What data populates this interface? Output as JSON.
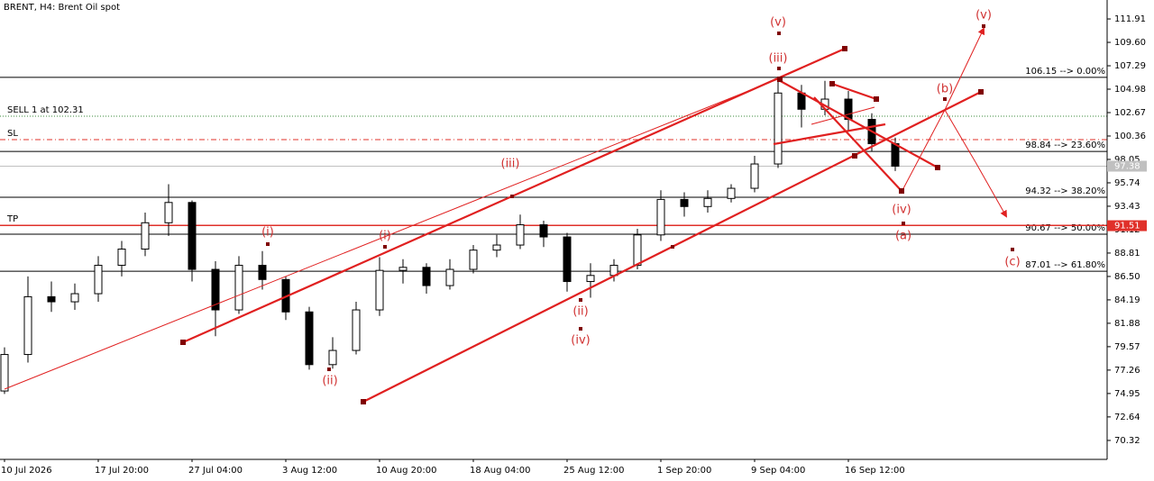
{
  "chart_data": {
    "type": "candlestick",
    "title": "BRENT, H4:  Brent Oil spot",
    "categories": [
      "10 Jul 2026",
      null,
      null,
      null,
      "17 Jul 20:00",
      null,
      null,
      null,
      "27 Jul 04:00",
      null,
      null,
      null,
      "3 Aug 12:00",
      null,
      null,
      null,
      "10 Aug 20:00",
      null,
      null,
      null,
      "18 Aug 04:00",
      null,
      null,
      null,
      "25 Aug 12:00",
      null,
      null,
      null,
      "1 Sep 20:00",
      null,
      null,
      null,
      "9 Sep 04:00",
      null,
      null,
      null,
      "16 Sep 12:00",
      null,
      null
    ],
    "open": [
      75.2,
      78.8,
      84.5,
      84.0,
      84.8,
      87.6,
      89.2,
      91.8,
      93.8,
      87.2,
      83.2,
      87.6,
      86.2,
      83.0,
      77.8,
      79.2,
      83.2,
      87.1,
      87.4,
      85.6,
      87.2,
      89.1,
      89.6,
      91.6,
      90.4,
      86.0,
      86.6,
      87.6,
      90.6,
      94.1,
      93.4,
      94.2,
      95.2,
      97.6,
      104.6,
      103.0,
      104.0,
      102.0,
      99.6
    ],
    "high": [
      79.5,
      86.5,
      86.0,
      85.8,
      88.5,
      90.0,
      92.8,
      95.6,
      94.0,
      88.0,
      88.5,
      89.0,
      86.5,
      83.5,
      80.5,
      84.0,
      88.4,
      88.2,
      87.8,
      88.2,
      89.6,
      90.6,
      92.6,
      92.0,
      90.8,
      87.8,
      88.2,
      91.2,
      95.0,
      94.8,
      95.0,
      95.6,
      98.4,
      106.15,
      105.4,
      105.8,
      104.8,
      102.6,
      100.2
    ],
    "low": [
      74.9,
      78.0,
      83.0,
      83.2,
      84.0,
      86.5,
      88.5,
      90.5,
      86.0,
      80.6,
      82.8,
      85.2,
      82.2,
      77.3,
      77.4,
      78.8,
      82.6,
      85.8,
      84.8,
      85.2,
      86.8,
      88.4,
      89.2,
      89.4,
      85.0,
      84.4,
      86.0,
      87.2,
      90.0,
      92.4,
      92.8,
      93.8,
      94.8,
      97.2,
      101.2,
      102.4,
      100.8,
      98.8,
      96.9
    ],
    "close": [
      78.8,
      84.5,
      84.0,
      84.8,
      87.6,
      89.2,
      91.8,
      93.8,
      87.2,
      83.2,
      87.6,
      86.2,
      83.0,
      77.8,
      79.2,
      83.2,
      87.1,
      87.4,
      85.6,
      87.2,
      89.1,
      89.6,
      91.6,
      90.4,
      86.0,
      86.6,
      87.6,
      90.6,
      94.1,
      93.4,
      94.2,
      95.2,
      97.6,
      104.6,
      103.0,
      104.0,
      102.0,
      99.6,
      97.38
    ],
    "ylim": [
      68.45,
      113.78
    ],
    "yticks": [
      111.91,
      {
        "value": 109.6,
        "label": "109.60"
      },
      107.29,
      104.98,
      102.67,
      100.36,
      98.05,
      95.74,
      93.43,
      91.12,
      88.81,
      {
        "value": 86.5,
        "label": "86.50"
      },
      84.19,
      81.88,
      79.57,
      77.26,
      74.95,
      72.64,
      70.32
    ],
    "levels": [
      {
        "value": 106.15,
        "label": "106.15 --> 0.00%",
        "color": "#000000",
        "style": "solid",
        "side": "right"
      },
      {
        "value": 98.84,
        "label": "98.84 --> 23.60%",
        "color": "#000000",
        "style": "solid",
        "side": "right"
      },
      {
        "value": 94.32,
        "label": "94.32 --> 38.20%",
        "color": "#000000",
        "style": "solid",
        "side": "right"
      },
      {
        "value": 90.67,
        "label": "90.67 --> 50.00%",
        "color": "#000000",
        "style": "solid",
        "side": "right"
      },
      {
        "value": 87.01,
        "label": "87.01 --> 61.80%",
        "color": "#000000",
        "style": "solid",
        "side": "right"
      },
      {
        "value": 102.31,
        "label": "SELL 1 at 102.31",
        "color": "#3a8a3a",
        "style": "dotted",
        "side": "left"
      },
      {
        "value": 100.0,
        "label": "SL",
        "color": "#e0302a",
        "style": "dashdot",
        "side": "left"
      },
      {
        "value": 91.56,
        "label": "TP",
        "color": "#e0302a",
        "style": "solid",
        "side": "left"
      }
    ],
    "price_markers": [
      {
        "value": 97.38,
        "color": "#c0c0c0"
      },
      {
        "value": 91.51,
        "color": "#e0302a"
      }
    ],
    "annotations": [
      "(v)",
      "(iii)",
      "(iii)",
      "(i)",
      "(i)",
      "(ii)",
      "(ii)",
      "(iv)",
      "(iv)",
      "(a)",
      "(b)",
      "(v)",
      "(c)"
    ]
  }
}
